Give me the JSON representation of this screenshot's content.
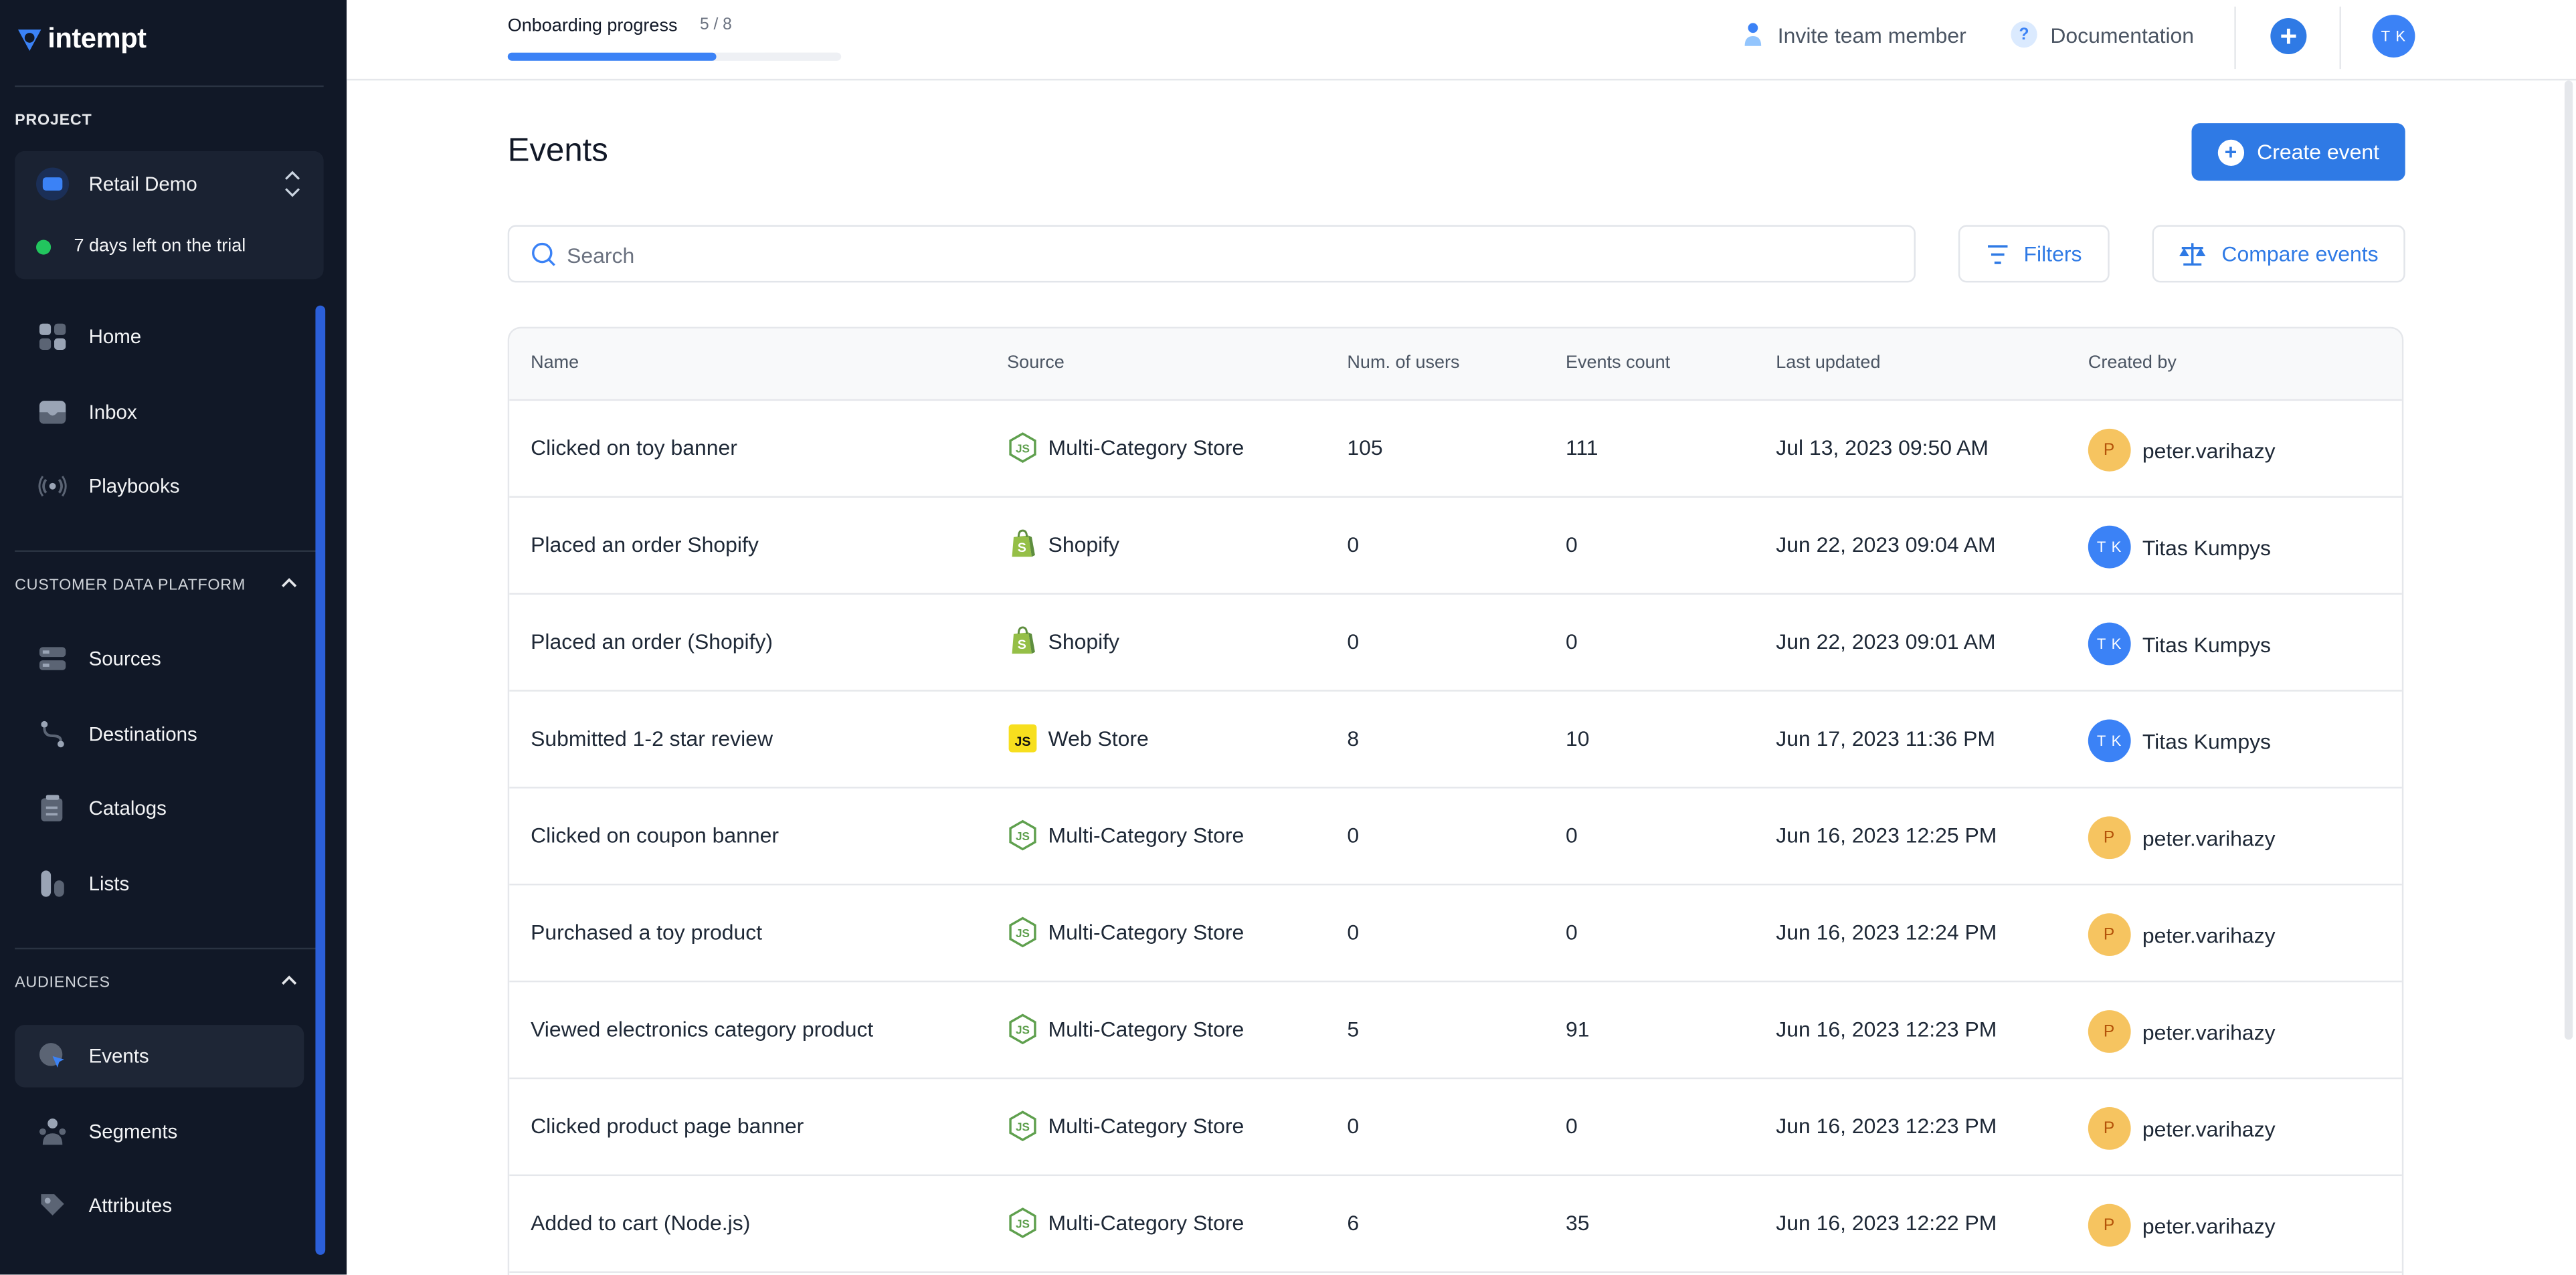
{
  "sidebar": {
    "logo_text": "intempt",
    "project_section": "PROJECT",
    "project_name": "Retail Demo",
    "trial_text": "7 days left on the trial",
    "nav_main": [
      {
        "label": "Home",
        "icon": "home-icon"
      },
      {
        "label": "Inbox",
        "icon": "inbox-icon"
      },
      {
        "label": "Playbooks",
        "icon": "playbooks-icon"
      }
    ],
    "cdp_section": "CUSTOMER DATA PLATFORM",
    "nav_cdp": [
      {
        "label": "Sources",
        "icon": "sources-icon"
      },
      {
        "label": "Destinations",
        "icon": "destinations-icon"
      },
      {
        "label": "Catalogs",
        "icon": "catalogs-icon"
      },
      {
        "label": "Lists",
        "icon": "lists-icon"
      }
    ],
    "audiences_section": "AUDIENCES",
    "nav_audiences": [
      {
        "label": "Events",
        "icon": "events-icon",
        "active": true
      },
      {
        "label": "Segments",
        "icon": "segments-icon"
      },
      {
        "label": "Attributes",
        "icon": "attributes-icon"
      }
    ]
  },
  "topbar": {
    "onboarding_label": "Onboarding progress",
    "onboarding_count": "5 / 8",
    "onboarding_progress": 0.625,
    "invite_label": "Invite team member",
    "docs_label": "Documentation",
    "user_initials": "T K"
  },
  "main": {
    "title": "Events",
    "create_label": "Create event",
    "search_placeholder": "Search",
    "filters_label": "Filters",
    "compare_label": "Compare events",
    "columns": [
      "Name",
      "Source",
      "Num. of users",
      "Events count",
      "Last updated",
      "Created by"
    ],
    "rows": [
      {
        "name": "Clicked on toy banner",
        "source": "Multi-Category Store",
        "source_icon": "nodejs",
        "users": "105",
        "count": "111",
        "updated": "Jul 13, 2023 09:50 AM",
        "creator": "peter.varihazy",
        "creator_initials": "P"
      },
      {
        "name": "Placed an order Shopify",
        "source": "Shopify",
        "source_icon": "shopify",
        "users": "0",
        "count": "0",
        "updated": "Jun 22, 2023 09:04 AM",
        "creator": "Titas Kumpys",
        "creator_initials": "T K"
      },
      {
        "name": "Placed an order (Shopify)",
        "source": "Shopify",
        "source_icon": "shopify",
        "users": "0",
        "count": "0",
        "updated": "Jun 22, 2023 09:01 AM",
        "creator": "Titas Kumpys",
        "creator_initials": "T K"
      },
      {
        "name": "Submitted 1-2 star review",
        "source": "Web Store",
        "source_icon": "js",
        "users": "8",
        "count": "10",
        "updated": "Jun 17, 2023 11:36 PM",
        "creator": "Titas Kumpys",
        "creator_initials": "T K"
      },
      {
        "name": "Clicked on coupon banner",
        "source": "Multi-Category Store",
        "source_icon": "nodejs",
        "users": "0",
        "count": "0",
        "updated": "Jun 16, 2023 12:25 PM",
        "creator": "peter.varihazy",
        "creator_initials": "P"
      },
      {
        "name": "Purchased a toy product",
        "source": "Multi-Category Store",
        "source_icon": "nodejs",
        "users": "0",
        "count": "0",
        "updated": "Jun 16, 2023 12:24 PM",
        "creator": "peter.varihazy",
        "creator_initials": "P"
      },
      {
        "name": "Viewed electronics category product",
        "source": "Multi-Category Store",
        "source_icon": "nodejs",
        "users": "5",
        "count": "91",
        "updated": "Jun 16, 2023 12:23 PM",
        "creator": "peter.varihazy",
        "creator_initials": "P"
      },
      {
        "name": "Clicked product page banner",
        "source": "Multi-Category Store",
        "source_icon": "nodejs",
        "users": "0",
        "count": "0",
        "updated": "Jun 16, 2023 12:23 PM",
        "creator": "peter.varihazy",
        "creator_initials": "P"
      },
      {
        "name": "Added to cart (Node.js)",
        "source": "Multi-Category Store",
        "source_icon": "nodejs",
        "users": "6",
        "count": "35",
        "updated": "Jun 16, 2023 12:22 PM",
        "creator": "peter.varihazy",
        "creator_initials": "P"
      }
    ]
  },
  "colors": {
    "sidebar_bg": "#111827",
    "accent": "#2f7ae5",
    "trial_green": "#22c55e",
    "avatar_yellow": "#f6c460"
  }
}
